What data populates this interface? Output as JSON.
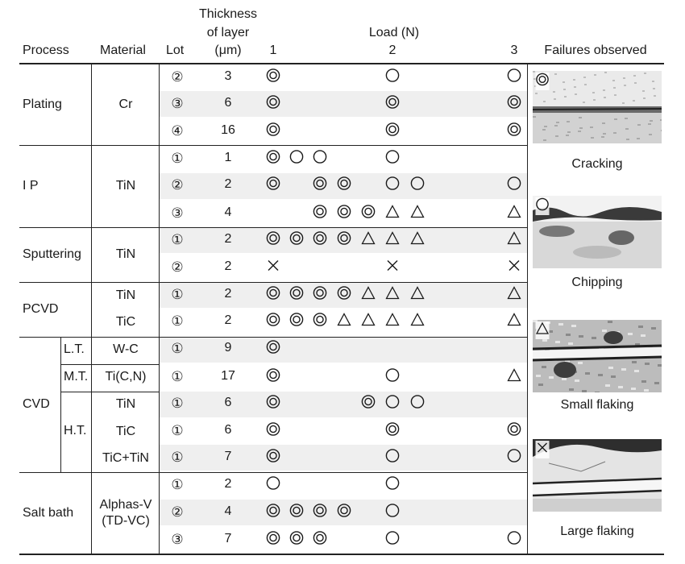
{
  "headers": {
    "process": "Process",
    "material": "Material",
    "lot": "Lot",
    "thickness_line1": "Thickness",
    "thickness_line2": "of layer",
    "thickness_line3": "(μm)",
    "load_title": "Load (N)",
    "load_1": "1",
    "load_2": "2",
    "load_3": "3",
    "failures": "Failures observed"
  },
  "groups": [
    {
      "process": "Plating",
      "material": "Cr"
    },
    {
      "process": "I P",
      "material": "TiN"
    },
    {
      "process": "Sputtering",
      "material": "TiN"
    },
    {
      "process": "PCVD",
      "materials": [
        "TiN",
        "TiC"
      ]
    },
    {
      "process": "CVD",
      "temps": [
        "L.T.",
        "M.T.",
        "H.T."
      ],
      "materials": [
        "W-C",
        "Ti(C,N)",
        "TiN",
        "TiC",
        "TiC+TiN"
      ]
    },
    {
      "process": "Salt bath",
      "material_line1": "Alphas-V",
      "material_line2": "(TD-VC)"
    }
  ],
  "rows": [
    {
      "lot": "②",
      "thickness": "3",
      "marks": {
        "1": "double-circle",
        "2.0": "circle",
        "3": "circle"
      }
    },
    {
      "lot": "③",
      "thickness": "6",
      "marks": {
        "1": "double-circle",
        "2.0": "double-circle",
        "3": "double-circle"
      }
    },
    {
      "lot": "④",
      "thickness": "16",
      "marks": {
        "1": "double-circle",
        "2.0": "double-circle",
        "3": "double-circle"
      }
    },
    {
      "lot": "①",
      "thickness": "1",
      "marks": {
        "1": "double-circle",
        "1.33": "circle",
        "1.67": "circle",
        "2.0": "circle"
      }
    },
    {
      "lot": "②",
      "thickness": "2",
      "marks": {
        "1": "double-circle",
        "1.67": "double-circle",
        "1.83": "double-circle",
        "2.0": "circle",
        "2.33": "circle",
        "3": "circle"
      }
    },
    {
      "lot": "③",
      "thickness": "4",
      "marks": {
        "1.67": "double-circle",
        "1.83": "double-circle",
        "1.92": "double-circle",
        "2.0": "triangle",
        "2.33": "triangle",
        "3": "triangle"
      }
    },
    {
      "lot": "①",
      "thickness": "2",
      "marks": {
        "1": "double-circle",
        "1.33": "double-circle",
        "1.67": "double-circle",
        "1.83": "double-circle",
        "1.92": "triangle",
        "2.0": "triangle",
        "2.33": "triangle",
        "3": "triangle"
      }
    },
    {
      "lot": "②",
      "thickness": "2",
      "marks": {
        "1": "cross",
        "2.0": "cross",
        "3": "cross"
      }
    },
    {
      "lot": "①",
      "thickness": "2",
      "marks": {
        "1": "double-circle",
        "1.33": "double-circle",
        "1.67": "double-circle",
        "1.83": "double-circle",
        "1.92": "triangle",
        "2.0": "triangle",
        "2.33": "triangle",
        "3": "triangle"
      }
    },
    {
      "lot": "①",
      "thickness": "2",
      "marks": {
        "1": "double-circle",
        "1.33": "double-circle",
        "1.67": "double-circle",
        "1.83": "triangle",
        "1.92": "triangle",
        "2.0": "triangle",
        "2.33": "triangle",
        "3": "triangle"
      }
    },
    {
      "lot": "①",
      "thickness": "9",
      "marks": {
        "1": "double-circle"
      }
    },
    {
      "lot": "①",
      "thickness": "17",
      "marks": {
        "1": "double-circle",
        "2.0": "circle",
        "3": "triangle"
      }
    },
    {
      "lot": "①",
      "thickness": "6",
      "marks": {
        "1": "double-circle",
        "1.92": "double-circle",
        "2.0": "circle",
        "2.33": "circle"
      }
    },
    {
      "lot": "①",
      "thickness": "6",
      "marks": {
        "1": "double-circle",
        "2.0": "double-circle",
        "3": "double-circle"
      }
    },
    {
      "lot": "①",
      "thickness": "7",
      "marks": {
        "1": "double-circle",
        "2.0": "circle",
        "3": "circle"
      }
    },
    {
      "lot": "①",
      "thickness": "2",
      "marks": {
        "1": "circle",
        "2.0": "circle"
      }
    },
    {
      "lot": "②",
      "thickness": "4",
      "marks": {
        "1": "double-circle",
        "1.33": "double-circle",
        "1.67": "double-circle",
        "1.83": "double-circle",
        "2.0": "circle"
      }
    },
    {
      "lot": "③",
      "thickness": "7",
      "marks": {
        "1": "double-circle",
        "1.33": "double-circle",
        "1.67": "double-circle",
        "2.0": "circle",
        "3": "circle"
      }
    }
  ],
  "failure_panels": [
    {
      "label": "Cracking",
      "symbol": "double-circle",
      "texture": "cracking"
    },
    {
      "label": "Chipping",
      "symbol": "circle",
      "texture": "chipping"
    },
    {
      "label": "Small flaking",
      "symbol": "triangle",
      "texture": "small-flaking"
    },
    {
      "label": "Large flaking",
      "symbol": "cross",
      "texture": "large-flaking"
    }
  ]
}
